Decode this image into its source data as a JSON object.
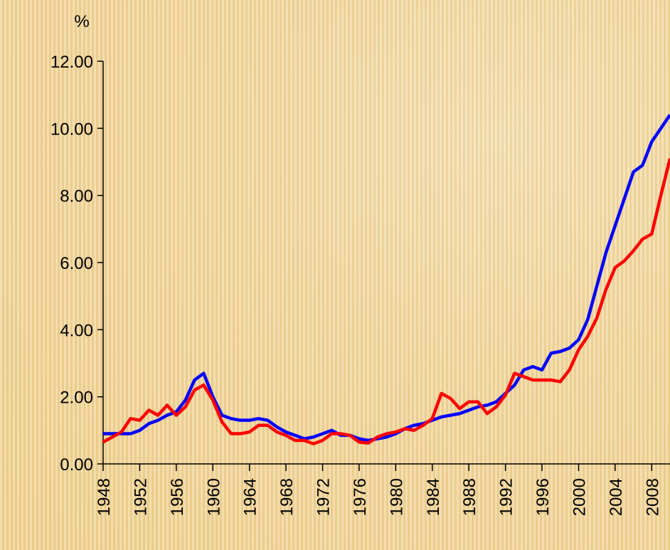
{
  "chart_data": {
    "type": "line",
    "y_label": "%",
    "x": [
      1948,
      1949,
      1950,
      1951,
      1952,
      1953,
      1954,
      1955,
      1956,
      1957,
      1958,
      1959,
      1960,
      1961,
      1962,
      1963,
      1964,
      1965,
      1966,
      1967,
      1968,
      1969,
      1970,
      1971,
      1972,
      1973,
      1974,
      1975,
      1976,
      1977,
      1978,
      1979,
      1980,
      1981,
      1982,
      1983,
      1984,
      1985,
      1986,
      1987,
      1988,
      1989,
      1990,
      1991,
      1992,
      1993,
      1994,
      1995,
      1996,
      1997,
      1998,
      1999,
      2000,
      2001,
      2002,
      2003,
      2004,
      2005,
      2006,
      2007,
      2008,
      2009,
      2010
    ],
    "series": [
      {
        "color": "#0000ff",
        "values": [
          0.9,
          0.9,
          0.9,
          0.9,
          1.0,
          1.2,
          1.3,
          1.45,
          1.55,
          1.9,
          2.5,
          2.7,
          2.0,
          1.45,
          1.35,
          1.3,
          1.3,
          1.35,
          1.3,
          1.1,
          0.95,
          0.85,
          0.75,
          0.8,
          0.9,
          1.0,
          0.85,
          0.85,
          0.75,
          0.7,
          0.75,
          0.8,
          0.9,
          1.05,
          1.15,
          1.2,
          1.3,
          1.4,
          1.45,
          1.5,
          1.6,
          1.7,
          1.75,
          1.85,
          2.1,
          2.35,
          2.8,
          2.9,
          2.8,
          3.3,
          3.35,
          3.45,
          3.7,
          4.3,
          5.3,
          6.3,
          7.1,
          7.9,
          8.7,
          8.9,
          9.6,
          10.0,
          10.4
        ]
      },
      {
        "color": "#ff0000",
        "values": [
          0.65,
          0.8,
          0.95,
          1.35,
          1.3,
          1.6,
          1.45,
          1.75,
          1.45,
          1.7,
          2.2,
          2.35,
          1.9,
          1.25,
          0.9,
          0.9,
          0.95,
          1.15,
          1.15,
          0.95,
          0.85,
          0.7,
          0.7,
          0.6,
          0.7,
          0.9,
          0.9,
          0.85,
          0.65,
          0.62,
          0.8,
          0.9,
          0.95,
          1.05,
          1.0,
          1.15,
          1.35,
          2.1,
          1.95,
          1.65,
          1.85,
          1.85,
          1.5,
          1.7,
          2.05,
          2.7,
          2.6,
          2.5,
          2.5,
          2.5,
          2.45,
          2.8,
          3.4,
          3.8,
          4.35,
          5.2,
          5.85,
          6.05,
          6.35,
          6.7,
          6.85,
          8.0,
          9.1
        ]
      }
    ],
    "xlim": [
      1948,
      2010
    ],
    "xticks": [
      1948,
      1952,
      1956,
      1960,
      1964,
      1968,
      1972,
      1976,
      1980,
      1984,
      1988,
      1992,
      1996,
      2000,
      2004,
      2008
    ],
    "ylim": [
      0,
      12
    ],
    "yticks": [
      {
        "value": 0,
        "label": "0.00"
      },
      {
        "value": 2,
        "label": "2.00"
      },
      {
        "value": 4,
        "label": "4.00"
      },
      {
        "value": 6,
        "label": "6.00"
      },
      {
        "value": 8,
        "label": "8.00"
      },
      {
        "value": 10,
        "label": "10.00"
      },
      {
        "value": 12,
        "label": "12.00"
      }
    ]
  }
}
